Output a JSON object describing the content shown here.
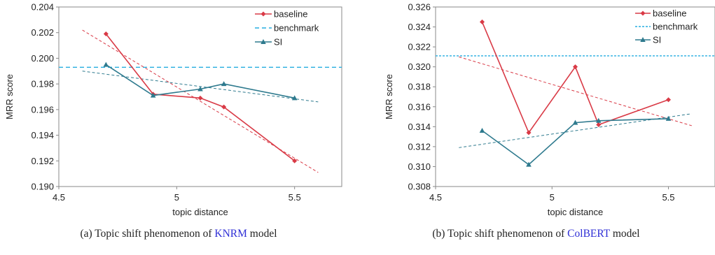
{
  "chart_data": [
    {
      "type": "line",
      "xlabel": "topic distance",
      "ylabel": "MRR score",
      "xlim": [
        4.5,
        5.7
      ],
      "ylim": [
        0.19,
        0.204
      ],
      "xticks": [
        "4.5",
        "5",
        "5.5"
      ],
      "xtick_values": [
        4.5,
        5,
        5.5
      ],
      "yticks": [
        "0.190",
        "0.192",
        "0.194",
        "0.196",
        "0.198",
        "0.200",
        "0.202",
        "0.204"
      ],
      "ytick_values": [
        0.19,
        0.192,
        0.194,
        0.196,
        0.198,
        0.2,
        0.202,
        0.204
      ],
      "grid": false,
      "legend_position": "top-right",
      "benchmark": 0.1993,
      "series": [
        {
          "name": "baseline",
          "color": "#d93a46",
          "marker": "diamond",
          "x": [
            4.7,
            4.9,
            5.1,
            5.2,
            5.5
          ],
          "y": [
            0.2019,
            0.1972,
            0.1969,
            0.1962,
            0.192
          ],
          "trend": {
            "x": [
              4.6,
              5.6
            ],
            "y": [
              0.2022,
              0.1911
            ]
          }
        },
        {
          "name": "benchmark",
          "color": "#27aee0",
          "dashed": true
        },
        {
          "name": "SI",
          "color": "#2e7a8e",
          "marker": "triangle",
          "x": [
            4.7,
            4.9,
            5.1,
            5.2,
            5.5
          ],
          "y": [
            0.1995,
            0.1971,
            0.1976,
            0.198,
            0.1969
          ],
          "trend": {
            "x": [
              4.6,
              5.6
            ],
            "y": [
              0.199,
              0.1966
            ]
          }
        }
      ],
      "caption": {
        "prefix": "(a) Topic shift phenomenon of ",
        "model": "KNRM",
        "suffix": " model"
      }
    },
    {
      "type": "line",
      "xlabel": "topic distance",
      "ylabel": "MRR score",
      "xlim": [
        4.5,
        5.7
      ],
      "ylim": [
        0.308,
        0.326
      ],
      "xticks": [
        "4.5",
        "5",
        "5.5"
      ],
      "xtick_values": [
        4.5,
        5,
        5.5
      ],
      "yticks": [
        "0.308",
        "0.310",
        "0.312",
        "0.314",
        "0.316",
        "0.318",
        "0.320",
        "0.322",
        "0.324",
        "0.326"
      ],
      "ytick_values": [
        0.308,
        0.31,
        0.312,
        0.314,
        0.316,
        0.318,
        0.32,
        0.322,
        0.324,
        0.326
      ],
      "grid": false,
      "legend_position": "top-right",
      "benchmark": 0.3211,
      "series": [
        {
          "name": "baseline",
          "color": "#d93a46",
          "marker": "diamond",
          "x": [
            4.7,
            4.9,
            5.1,
            5.2,
            5.5
          ],
          "y": [
            0.3245,
            0.3134,
            0.32,
            0.3142,
            0.3167
          ],
          "trend": {
            "x": [
              4.6,
              5.6
            ],
            "y": [
              0.321,
              0.3141
            ]
          }
        },
        {
          "name": "benchmark",
          "color": "#27aee0",
          "dashed": true
        },
        {
          "name": "SI",
          "color": "#2e7a8e",
          "marker": "triangle",
          "x": [
            4.7,
            4.9,
            5.1,
            5.2,
            5.5
          ],
          "y": [
            0.3136,
            0.3102,
            0.3144,
            0.3146,
            0.3148
          ],
          "trend": {
            "x": [
              4.6,
              5.6
            ],
            "y": [
              0.3119,
              0.3153
            ]
          }
        }
      ],
      "caption": {
        "prefix": "(b) Topic shift phenomenon of ",
        "model": "ColBERT",
        "suffix": " model"
      }
    }
  ]
}
